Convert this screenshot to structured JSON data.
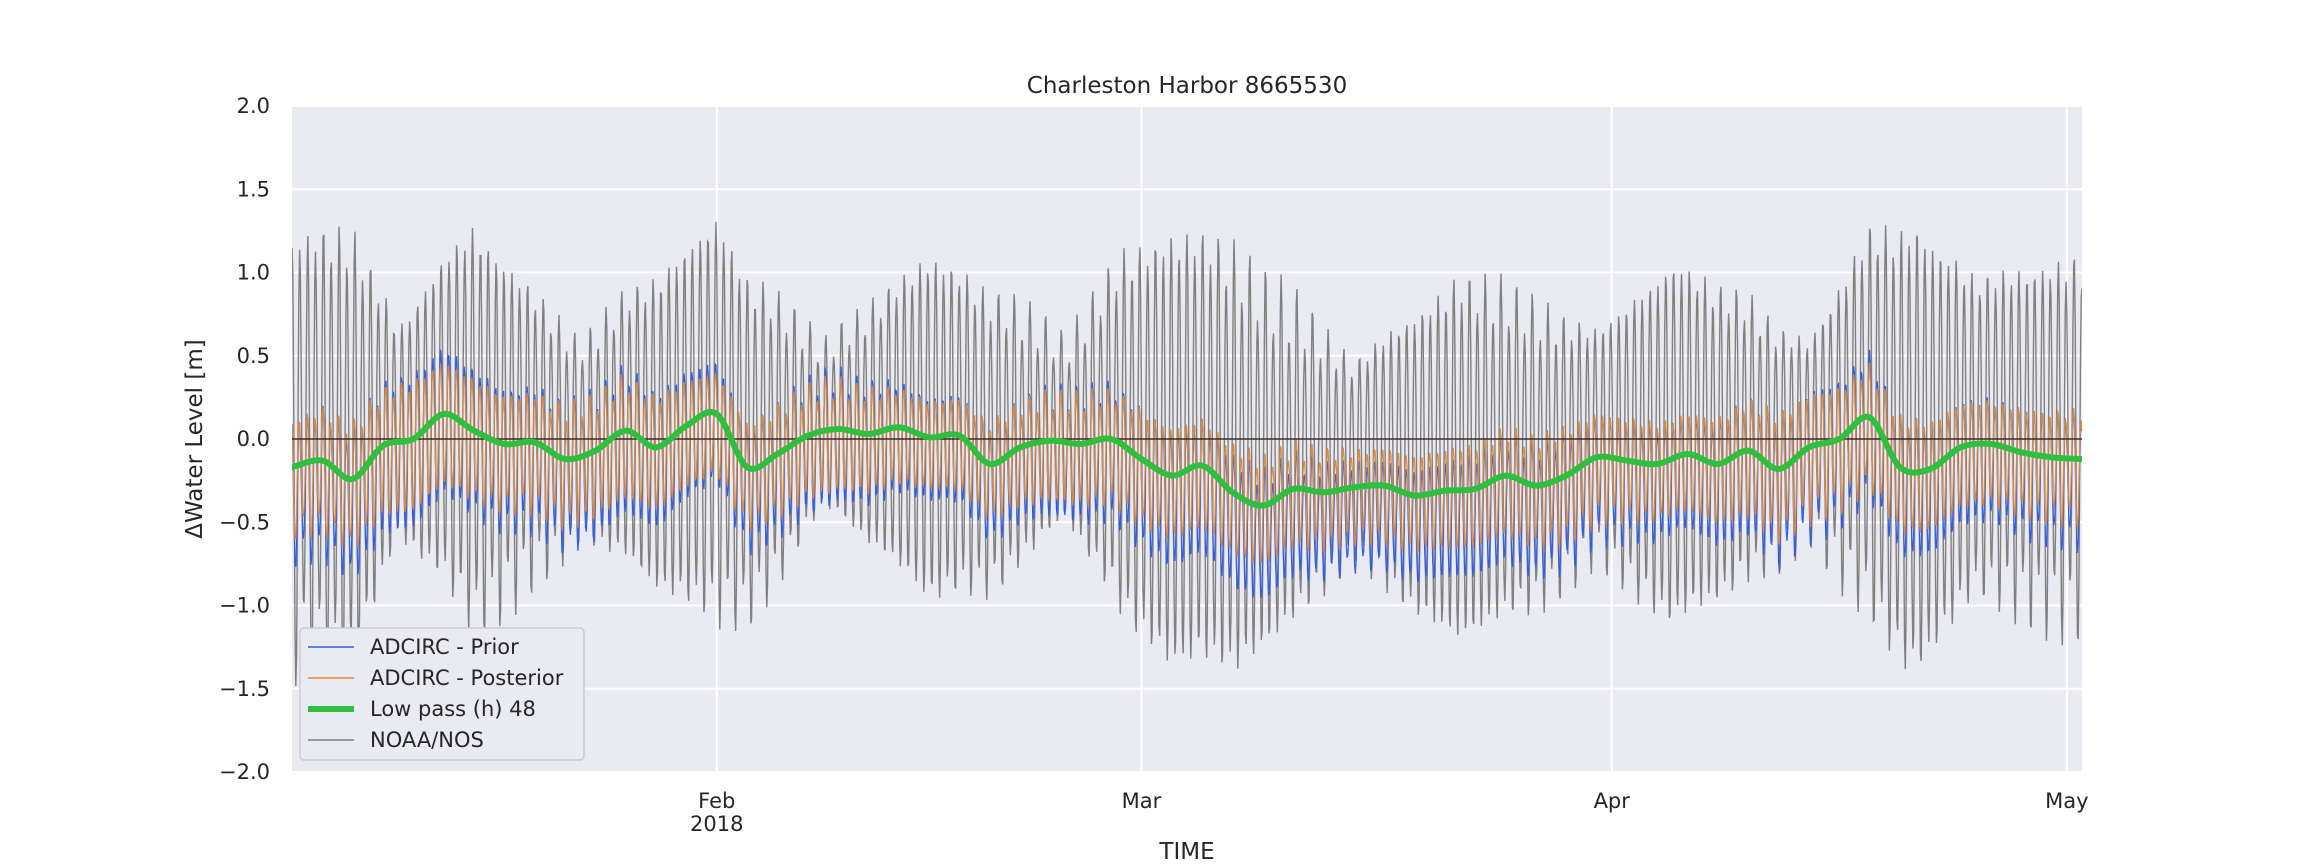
{
  "chart_data": {
    "type": "line",
    "title": "Charleston Harbor  8665530",
    "xlabel": "TIME",
    "ylabel": "ΔWater Level [m]",
    "ylim": [
      -2.0,
      2.0
    ],
    "yticks": [
      -2.0,
      -1.5,
      -1.0,
      -0.5,
      0.0,
      0.5,
      1.0,
      1.5,
      2.0
    ],
    "ytick_labels": [
      "−2.0",
      "−1.5",
      "−1.0",
      "−0.5",
      "0.0",
      "0.5",
      "1.0",
      "1.5",
      "2.0"
    ],
    "xlim": [
      "2018-01-04",
      "2018-05-02"
    ],
    "xticks": [
      {
        "date": "2018-02-01",
        "label": "Feb",
        "sublabel": "2018"
      },
      {
        "date": "2018-03-01",
        "label": "Mar",
        "sublabel": ""
      },
      {
        "date": "2018-04-01",
        "label": "Apr",
        "sublabel": ""
      },
      {
        "date": "2018-05-01",
        "label": "May",
        "sublabel": ""
      }
    ],
    "grid": true,
    "legend_position": "lower-left",
    "reference_line_y": 0.0,
    "series": [
      {
        "name": "ADCIRC - Prior",
        "color": "#2f5ee6",
        "style": "thin",
        "amplitude_m": [
          [
            0,
            0.4
          ],
          [
            8,
            0.45
          ],
          [
            15,
            0.4
          ],
          [
            22,
            0.42
          ],
          [
            28,
            0.35
          ],
          [
            35,
            0.38
          ],
          [
            42,
            0.3
          ],
          [
            49,
            0.35
          ],
          [
            56,
            0.4
          ],
          [
            63,
            0.38
          ],
          [
            70,
            0.3
          ],
          [
            77,
            0.35
          ],
          [
            84,
            0.38
          ],
          [
            91,
            0.32
          ],
          [
            98,
            0.42
          ],
          [
            105,
            0.4
          ],
          [
            112,
            0.35
          ],
          [
            118,
            0.38
          ]
        ]
      },
      {
        "name": "ADCIRC - Posterior",
        "color": "#e08a3c",
        "style": "thin",
        "amplitude_m": [
          [
            0,
            0.33
          ],
          [
            8,
            0.38
          ],
          [
            15,
            0.33
          ],
          [
            22,
            0.35
          ],
          [
            28,
            0.3
          ],
          [
            35,
            0.32
          ],
          [
            42,
            0.26
          ],
          [
            49,
            0.3
          ],
          [
            56,
            0.33
          ],
          [
            63,
            0.32
          ],
          [
            70,
            0.26
          ],
          [
            77,
            0.3
          ],
          [
            84,
            0.32
          ],
          [
            91,
            0.28
          ],
          [
            98,
            0.36
          ],
          [
            105,
            0.34
          ],
          [
            112,
            0.3
          ],
          [
            118,
            0.32
          ]
        ]
      },
      {
        "name": "Low pass (h) 48",
        "color": "#2ebf3f",
        "style": "thick",
        "x": [
          "2018-01-04",
          "2018-01-06",
          "2018-01-08",
          "2018-01-10",
          "2018-01-12",
          "2018-01-14",
          "2018-01-16",
          "2018-01-18",
          "2018-01-20",
          "2018-01-22",
          "2018-01-24",
          "2018-01-26",
          "2018-01-28",
          "2018-01-30",
          "2018-02-01",
          "2018-02-03",
          "2018-02-05",
          "2018-02-07",
          "2018-02-09",
          "2018-02-11",
          "2018-02-13",
          "2018-02-15",
          "2018-02-17",
          "2018-02-19",
          "2018-02-21",
          "2018-02-23",
          "2018-02-25",
          "2018-02-27",
          "2018-03-01",
          "2018-03-03",
          "2018-03-05",
          "2018-03-07",
          "2018-03-09",
          "2018-03-11",
          "2018-03-13",
          "2018-03-15",
          "2018-03-17",
          "2018-03-19",
          "2018-03-21",
          "2018-03-23",
          "2018-03-25",
          "2018-03-27",
          "2018-03-29",
          "2018-03-31",
          "2018-04-02",
          "2018-04-04",
          "2018-04-06",
          "2018-04-08",
          "2018-04-10",
          "2018-04-12",
          "2018-04-14",
          "2018-04-16",
          "2018-04-18",
          "2018-04-20",
          "2018-04-22",
          "2018-04-24",
          "2018-04-26",
          "2018-04-28",
          "2018-04-30",
          "2018-05-02"
        ],
        "y": [
          -0.17,
          -0.13,
          -0.24,
          -0.04,
          0.0,
          0.15,
          0.05,
          -0.03,
          -0.02,
          -0.12,
          -0.07,
          0.05,
          -0.05,
          0.08,
          0.15,
          -0.17,
          -0.09,
          0.02,
          0.06,
          0.03,
          0.07,
          0.01,
          0.02,
          -0.15,
          -0.05,
          -0.01,
          -0.03,
          0.0,
          -0.12,
          -0.22,
          -0.16,
          -0.32,
          -0.4,
          -0.3,
          -0.32,
          -0.29,
          -0.28,
          -0.34,
          -0.31,
          -0.3,
          -0.22,
          -0.28,
          -0.22,
          -0.11,
          -0.13,
          -0.15,
          -0.09,
          -0.15,
          -0.07,
          -0.18,
          -0.05,
          0.0,
          0.13,
          -0.17,
          -0.18,
          -0.05,
          -0.03,
          -0.08,
          -0.11,
          -0.12
        ]
      },
      {
        "name": "NOAA/NOS",
        "color": "#808080",
        "style": "thin",
        "amplitude_m": [
          [
            0,
            1.2
          ],
          [
            4,
            1.25
          ],
          [
            7,
            0.6
          ],
          [
            12,
            1.15
          ],
          [
            15,
            0.9
          ],
          [
            19,
            0.55
          ],
          [
            24,
            0.9
          ],
          [
            28,
            1.15
          ],
          [
            32,
            0.8
          ],
          [
            35,
            0.45
          ],
          [
            39,
            0.75
          ],
          [
            42,
            1.0
          ],
          [
            47,
            0.8
          ],
          [
            51,
            0.5
          ],
          [
            55,
            1.05
          ],
          [
            58,
            1.25
          ],
          [
            62,
            1.2
          ],
          [
            66,
            0.9
          ],
          [
            70,
            0.55
          ],
          [
            73,
            0.8
          ],
          [
            77,
            1.05
          ],
          [
            82,
            0.85
          ],
          [
            86,
            0.65
          ],
          [
            91,
            1.05
          ],
          [
            95,
            0.85
          ],
          [
            100,
            0.55
          ],
          [
            104,
            1.1
          ],
          [
            107,
            1.3
          ],
          [
            111,
            0.9
          ],
          [
            115,
            1.0
          ],
          [
            118,
            1.05
          ]
        ]
      }
    ]
  }
}
